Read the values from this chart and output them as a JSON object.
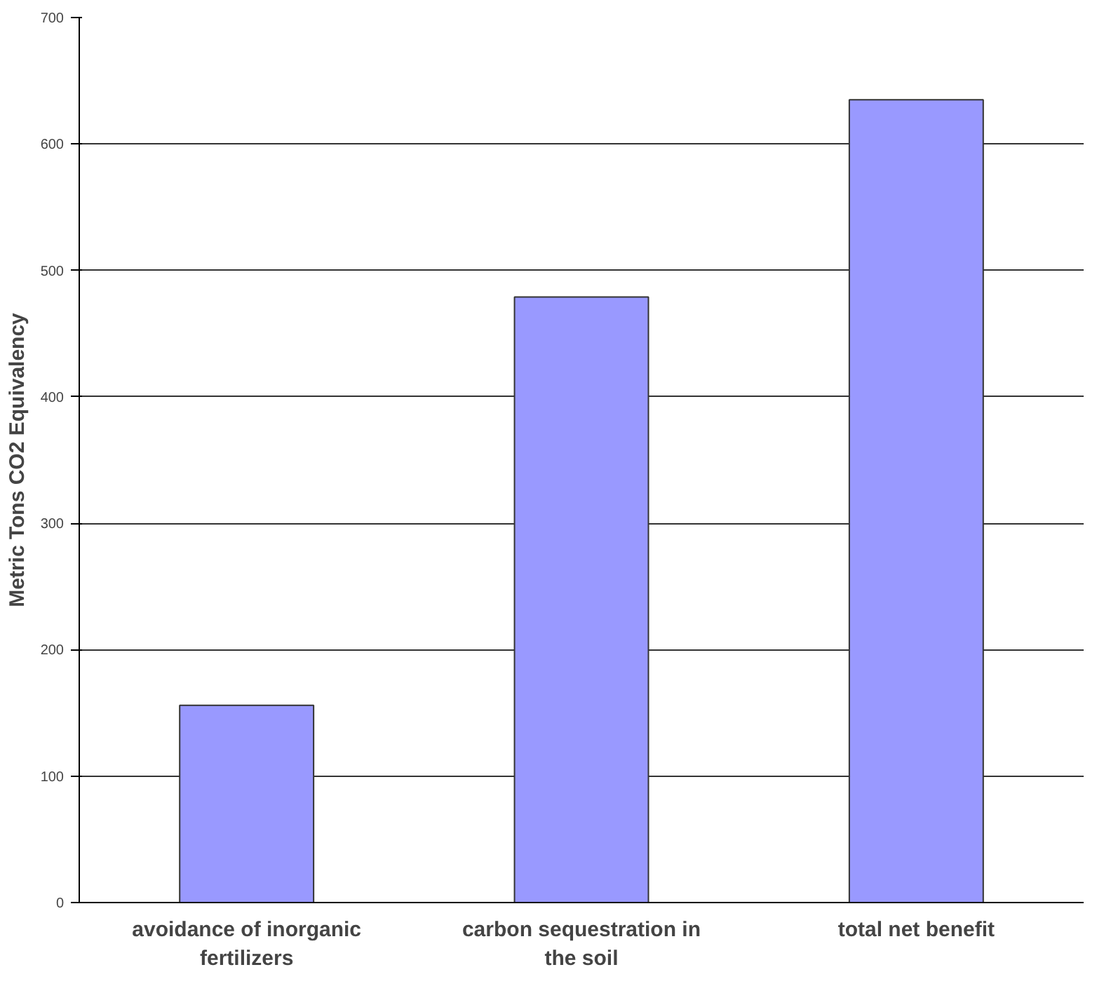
{
  "chart_data": {
    "type": "bar",
    "ylabel": "Metric Tons CO2 Equivalency",
    "categories": [
      "avoidance of inorganic fertilizers",
      "carbon sequestration in the soil",
      "total net benefit"
    ],
    "values": [
      156,
      479,
      635
    ],
    "color": "#9999ff",
    "ylim": [
      0,
      700
    ],
    "yticks": [
      0,
      100,
      200,
      300,
      400,
      500,
      600,
      700
    ],
    "grid": "y"
  }
}
